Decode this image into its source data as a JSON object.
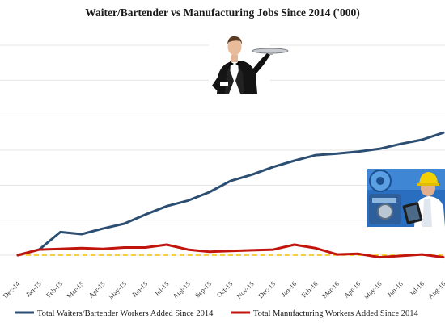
{
  "chart_data": {
    "type": "line",
    "title": "Waiter/Bartender vs Manufacturing Jobs Since 2014 ('000)",
    "xlabel": "",
    "ylabel": "",
    "ylim": [
      -30,
      330
    ],
    "grid": "horizontal",
    "y_axis_labels": "hidden",
    "legend_position": "bottom",
    "categories": [
      "Dec-14",
      "Jan-15",
      "Feb-15",
      "Mar-15",
      "Apr-15",
      "May-15",
      "Jun-15",
      "Jul-15",
      "Aug-15",
      "Sep-15",
      "Oct-15",
      "Nov-15",
      "Dec-15",
      "Jan-16",
      "Feb-16",
      "Mar-16",
      "Apr-16",
      "May-16",
      "Jun-16",
      "Jul-16",
      "Aug-16"
    ],
    "series": [
      {
        "name": "Total Waiters/Bartender Workers Added Since 2014",
        "color": "#2b4e72",
        "values": [
          0,
          8,
          33,
          30,
          38,
          45,
          58,
          70,
          78,
          90,
          106,
          115,
          126,
          135,
          143,
          145,
          148,
          152,
          159,
          165,
          175
        ]
      },
      {
        "name": "Total Manufacturing Workers Added Since 2014",
        "color": "#c0140c",
        "values": [
          0,
          8,
          9,
          10,
          9,
          11,
          11,
          15,
          8,
          5,
          6,
          7,
          8,
          15,
          10,
          1,
          2,
          -3,
          -1,
          1,
          -3
        ]
      }
    ],
    "reference_line": {
      "y": 0,
      "color": "#f2c200"
    }
  },
  "images": {
    "waiter": {
      "subject": "waiter-holding-tray-photo"
    },
    "worker": {
      "subject": "factory-worker-with-tablet-photo"
    }
  }
}
